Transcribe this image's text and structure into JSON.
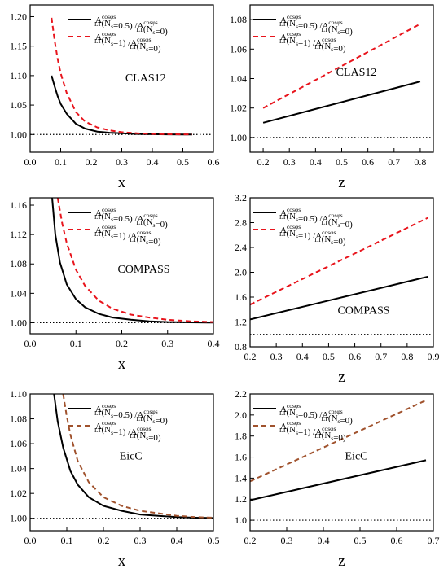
{
  "chart_data": [
    {
      "type": "line",
      "label": "CLAS12",
      "xlabel": "x",
      "xlim": [
        0.0,
        0.6
      ],
      "ylim": [
        0.97,
        1.22
      ],
      "xticks": [
        "0.0",
        "0.1",
        "0.2",
        "0.3",
        "0.4",
        "0.5",
        "0.6"
      ],
      "yticks": [
        "1.00",
        "1.05",
        "1.10",
        "1.15",
        "1.20"
      ],
      "legend_position": "top-right",
      "series": [
        {
          "legend": {
            "a": "A",
            "asub": "LT",
            "asup": "cosφs",
            "b": "(N",
            "bsub": "s",
            "c": "=0.5) /A",
            "csub": "LT",
            "csup": "cosφs",
            "d": "(N",
            "dsub": "s",
            "e": "=0)"
          },
          "style": "solid",
          "color": "#000000",
          "x": [
            0.07,
            0.08,
            0.09,
            0.1,
            0.12,
            0.15,
            0.18,
            0.22,
            0.26,
            0.3,
            0.35,
            0.4,
            0.45,
            0.5,
            0.53
          ],
          "y": [
            1.1,
            1.082,
            1.065,
            1.052,
            1.035,
            1.018,
            1.01,
            1.005,
            1.003,
            1.002,
            1.001,
            1.0005,
            1.0002,
            1.0001,
            1.0001
          ]
        },
        {
          "legend": {
            "a": "A",
            "asub": "LT",
            "asup": "cosφs",
            "b": "(N",
            "bsub": "s",
            "c": "=1) /A",
            "csub": "LT",
            "csup": "cosφs",
            "d": "(N",
            "dsub": "s",
            "e": "=0)"
          },
          "style": "dashed",
          "color": "#e8141c",
          "x": [
            0.07,
            0.08,
            0.09,
            0.1,
            0.12,
            0.15,
            0.18,
            0.22,
            0.26,
            0.3,
            0.35,
            0.4,
            0.45,
            0.5,
            0.53
          ],
          "y": [
            1.198,
            1.16,
            1.128,
            1.104,
            1.07,
            1.038,
            1.022,
            1.012,
            1.007,
            1.004,
            1.002,
            1.001,
            1.0005,
            1.0002,
            1.0001
          ]
        }
      ]
    },
    {
      "type": "line",
      "label": "CLAS12",
      "xlabel": "z",
      "xlim": [
        0.15,
        0.85
      ],
      "ylim": [
        0.99,
        1.09
      ],
      "xticks": [
        "0.2",
        "0.3",
        "0.4",
        "0.5",
        "0.6",
        "0.7",
        "0.8"
      ],
      "yticks": [
        "1.00",
        "1.02",
        "1.04",
        "1.06",
        "1.08"
      ],
      "legend_position": "top-left",
      "series": [
        {
          "legend": {
            "a": "A",
            "asub": "LT",
            "asup": "cosφs",
            "b": "(N",
            "bsub": "s",
            "c": "=0.5) /A",
            "csub": "LT",
            "csup": "cosφs",
            "d": "(N",
            "dsub": "s",
            "e": "=0)"
          },
          "style": "solid",
          "color": "#000000",
          "x": [
            0.2,
            0.8
          ],
          "y": [
            1.01,
            1.038
          ]
        },
        {
          "legend": {
            "a": "A",
            "asub": "LT",
            "asup": "cosφs",
            "b": "(N",
            "bsub": "s",
            "c": "=1) /A",
            "csub": "LT",
            "csup": "cosφs",
            "d": "(N",
            "dsub": "s",
            "e": "=0)"
          },
          "style": "dashed",
          "color": "#e8141c",
          "x": [
            0.2,
            0.8
          ],
          "y": [
            1.02,
            1.077
          ]
        }
      ]
    },
    {
      "type": "line",
      "label": "COMPASS",
      "xlabel": "x",
      "xlim": [
        0.0,
        0.4
      ],
      "ylim": [
        0.985,
        1.17
      ],
      "xticks": [
        "0.0",
        "0.1",
        "0.2",
        "0.3",
        "0.4"
      ],
      "yticks": [
        "1.00",
        "1.04",
        "1.08",
        "1.12",
        "1.16"
      ],
      "legend_position": "top-right",
      "series": [
        {
          "legend": {
            "a": "A",
            "asub": "LT",
            "asup": "cosφs",
            "b": "(N",
            "bsub": "s",
            "c": "=0.5) /A",
            "csub": "LT",
            "csup": "cosφs",
            "d": "(N",
            "dsub": "s",
            "e": "=0)"
          },
          "style": "solid",
          "color": "#000000",
          "x": [
            0.048,
            0.055,
            0.065,
            0.08,
            0.1,
            0.12,
            0.15,
            0.18,
            0.22,
            0.26,
            0.3,
            0.35,
            0.4
          ],
          "y": [
            1.17,
            1.12,
            1.082,
            1.052,
            1.032,
            1.021,
            1.012,
            1.007,
            1.004,
            1.002,
            1.001,
            1.0005,
            1.0002
          ]
        },
        {
          "legend": {
            "a": "A",
            "asub": "LT",
            "asup": "cosφs",
            "b": "(N",
            "bsub": "s",
            "c": "=1) /A",
            "csub": "LT",
            "csup": "cosφs",
            "d": "(N",
            "dsub": "s",
            "e": "=0)"
          },
          "style": "dashed",
          "color": "#e8141c",
          "x": [
            0.06,
            0.07,
            0.08,
            0.1,
            0.12,
            0.15,
            0.18,
            0.22,
            0.26,
            0.3,
            0.35,
            0.4
          ],
          "y": [
            1.17,
            1.135,
            1.108,
            1.072,
            1.05,
            1.03,
            1.019,
            1.011,
            1.007,
            1.004,
            1.002,
            1.001
          ]
        }
      ]
    },
    {
      "type": "line",
      "label": "COMPASS",
      "xlabel": "z",
      "xlim": [
        0.2,
        0.9
      ],
      "ylim": [
        0.8,
        3.2
      ],
      "xticks": [
        "0.2",
        "0.3",
        "0.4",
        "0.5",
        "0.6",
        "0.7",
        "0.8",
        "0.9"
      ],
      "yticks": [
        "0.8",
        "1.2",
        "1.6",
        "2.0",
        "2.4",
        "2.8",
        "3.2"
      ],
      "legend_position": "top-left",
      "series": [
        {
          "legend": {
            "a": "A",
            "asub": "LT",
            "asup": "cosφs",
            "b": "(N",
            "bsub": "s",
            "c": "=0.5) /A",
            "csub": "LT",
            "csup": "cosφs",
            "d": "(N",
            "dsub": "s",
            "e": "=0)"
          },
          "style": "solid",
          "color": "#000000",
          "x": [
            0.2,
            0.88
          ],
          "y": [
            1.24,
            1.93
          ]
        },
        {
          "legend": {
            "a": "A",
            "asub": "LT",
            "asup": "cosφs",
            "b": "(N",
            "bsub": "s",
            "c": "=1) /A",
            "csub": "LT",
            "csup": "cosφs",
            "d": "(N",
            "dsub": "s",
            "e": "=0)"
          },
          "style": "dashed",
          "color": "#e8141c",
          "x": [
            0.2,
            0.88
          ],
          "y": [
            1.48,
            2.88
          ]
        }
      ]
    },
    {
      "type": "line",
      "label": "EicC",
      "xlabel": "x",
      "xlim": [
        0.0,
        0.5
      ],
      "ylim": [
        0.99,
        1.1
      ],
      "xticks": [
        "0.0",
        "0.1",
        "0.2",
        "0.3",
        "0.4",
        "0.5"
      ],
      "yticks": [
        "1.00",
        "1.02",
        "1.04",
        "1.06",
        "1.08",
        "1.10"
      ],
      "legend_position": "top-right",
      "series": [
        {
          "legend": {
            "a": "A",
            "asub": "LT",
            "asup": "cosφs",
            "b": "(N",
            "bsub": "s",
            "c": "=0.5) /A",
            "csub": "LT",
            "csup": "cosφs",
            "d": "(N",
            "dsub": "s",
            "e": "=0)"
          },
          "style": "solid",
          "color": "#000000",
          "x": [
            0.065,
            0.075,
            0.09,
            0.11,
            0.13,
            0.16,
            0.2,
            0.25,
            0.3,
            0.35,
            0.4,
            0.45,
            0.5
          ],
          "y": [
            1.1,
            1.078,
            1.057,
            1.038,
            1.027,
            1.017,
            1.01,
            1.006,
            1.003,
            1.002,
            1.001,
            1.0005,
            1.0002
          ]
        },
        {
          "legend": {
            "a": "A",
            "asub": "LT",
            "asup": "cosφs",
            "b": "(N",
            "bsub": "s",
            "c": "=1) /A",
            "csub": "LT",
            "csup": "cosφs",
            "d": "(N",
            "dsub": "s",
            "e": "=0)"
          },
          "style": "dashed",
          "color": "#a0522d",
          "x": [
            0.09,
            0.1,
            0.11,
            0.13,
            0.16,
            0.2,
            0.25,
            0.3,
            0.35,
            0.4,
            0.45,
            0.5
          ],
          "y": [
            1.1,
            1.082,
            1.067,
            1.046,
            1.029,
            1.017,
            1.01,
            1.006,
            1.004,
            1.002,
            1.001,
            1.0005
          ]
        }
      ]
    },
    {
      "type": "line",
      "label": "EicC",
      "xlabel": "z",
      "xlim": [
        0.2,
        0.7
      ],
      "ylim": [
        0.9,
        2.2
      ],
      "xticks": [
        "0.2",
        "0.3",
        "0.4",
        "0.5",
        "0.6",
        "0.7"
      ],
      "yticks": [
        "1.0",
        "1.2",
        "1.4",
        "1.6",
        "1.8",
        "2.0",
        "2.2"
      ],
      "legend_position": "top-left",
      "series": [
        {
          "legend": {
            "a": "A",
            "asub": "LT",
            "asup": "cosφs",
            "b": "(N",
            "bsub": "s",
            "c": "=0.5) /A",
            "csub": "LT",
            "csup": "cosφs",
            "d": "(N",
            "dsub": "s",
            "e": "=0)"
          },
          "style": "solid",
          "color": "#000000",
          "x": [
            0.2,
            0.68
          ],
          "y": [
            1.19,
            1.57
          ]
        },
        {
          "legend": {
            "a": "A",
            "asub": "LT",
            "asup": "cosφs",
            "b": "(N",
            "bsub": "s",
            "c": "=1) /A",
            "csub": "LT",
            "csup": "cosφs",
            "d": "(N",
            "dsub": "s",
            "e": "=0)"
          },
          "style": "dashed",
          "color": "#a0522d",
          "x": [
            0.2,
            0.68
          ],
          "y": [
            1.37,
            2.14
          ]
        }
      ]
    }
  ]
}
